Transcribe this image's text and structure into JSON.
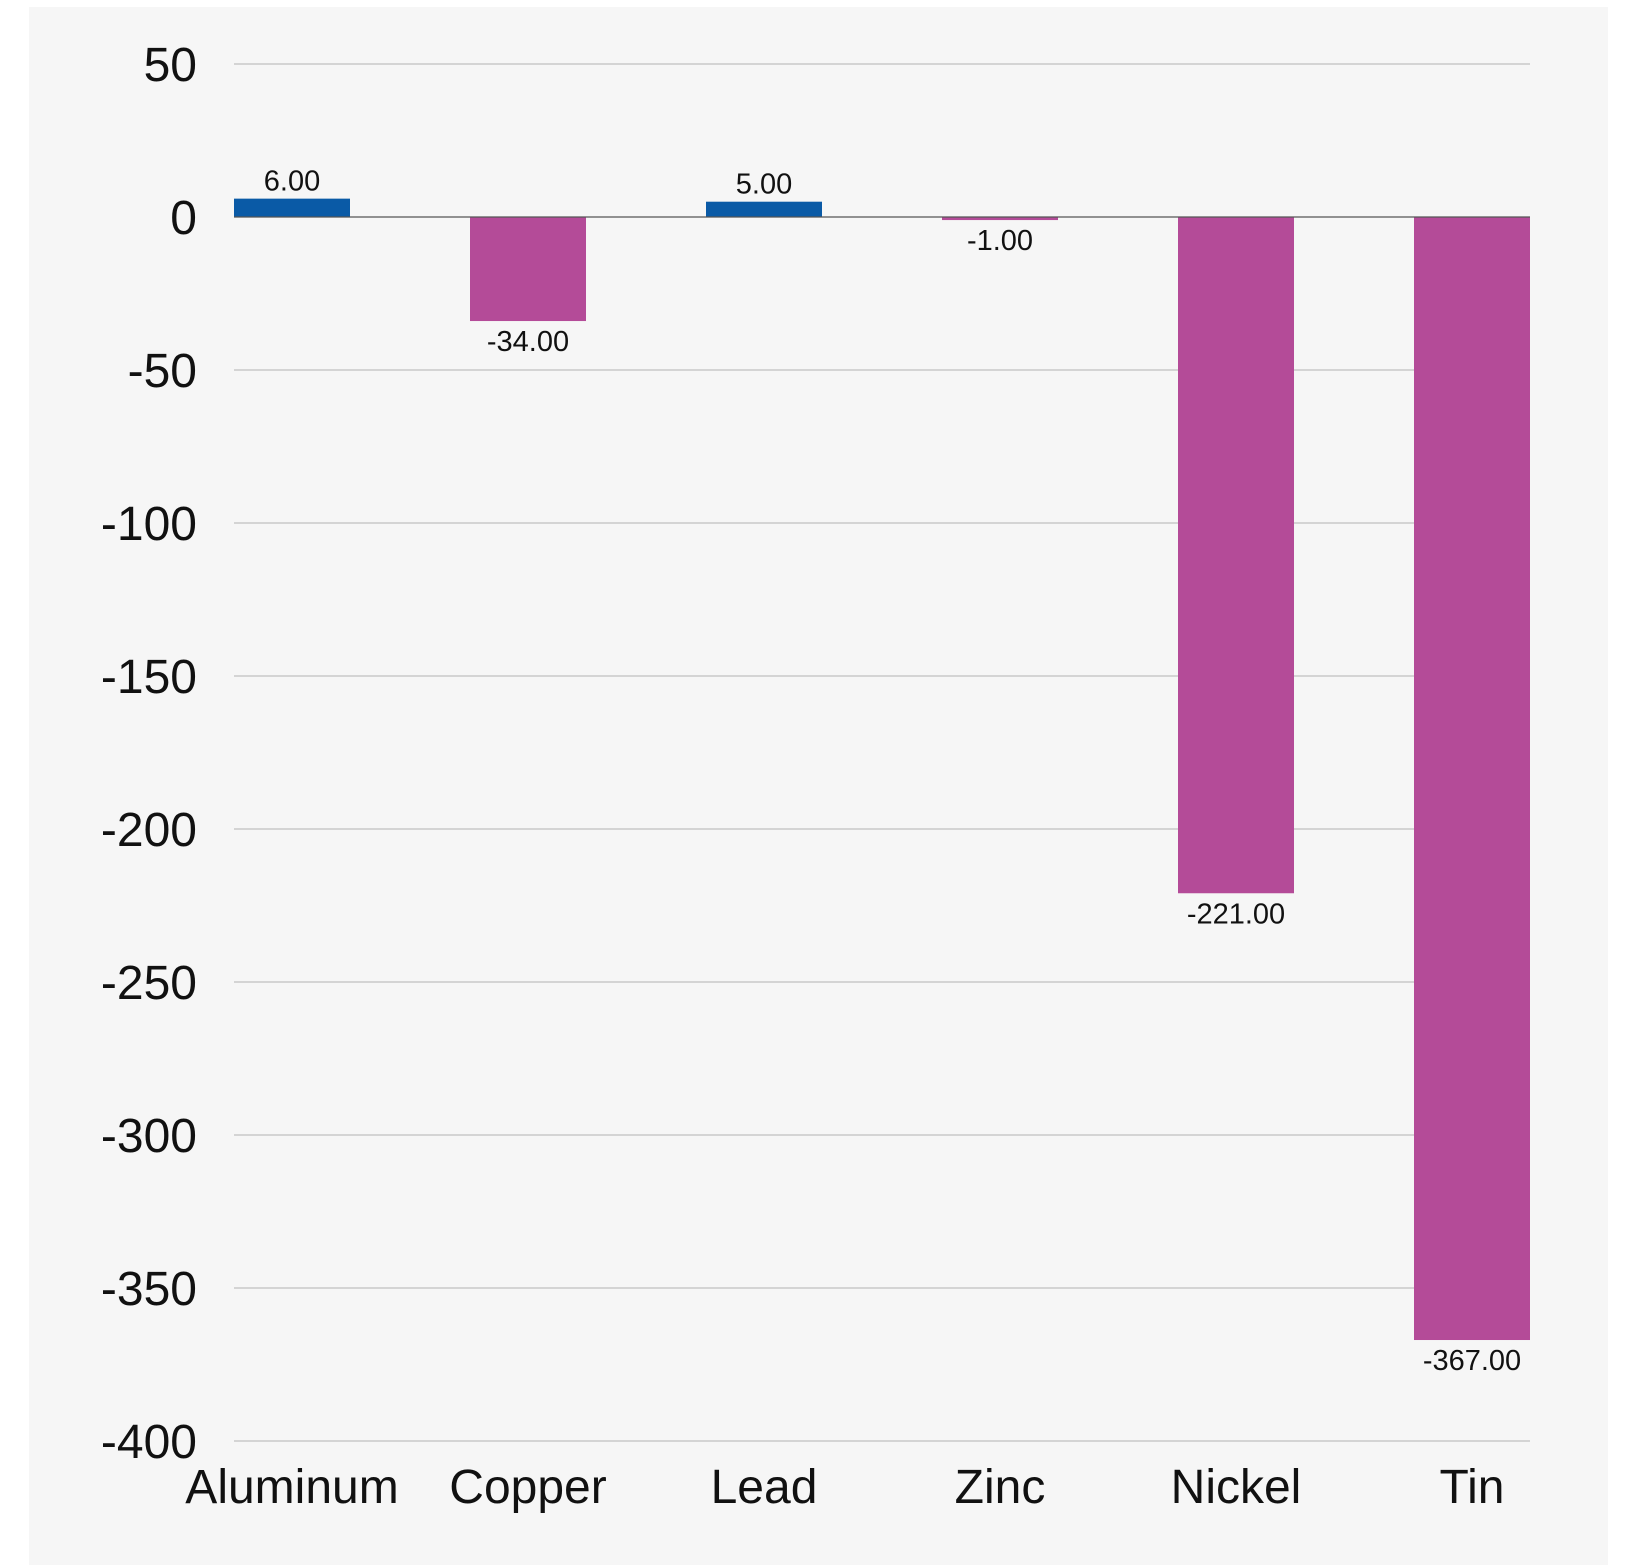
{
  "chart_data": {
    "type": "bar",
    "categories": [
      "Aluminum",
      "Copper",
      "Lead",
      "Zinc",
      "Nickel",
      "Tin"
    ],
    "values": [
      6,
      -34,
      5,
      -1,
      -221,
      -367
    ],
    "value_labels": [
      "6.00",
      "-34.00",
      "5.00",
      "-1.00",
      "-221.00",
      "-367.00"
    ],
    "ylim": [
      -400,
      50
    ],
    "yticks": [
      50,
      0,
      -50,
      -100,
      -150,
      -200,
      -250,
      -300,
      -350,
      -400
    ],
    "ytick_labels": [
      "50",
      "0",
      "-50",
      "-100",
      "-150",
      "-200",
      "-250",
      "-300",
      "-350",
      "-400"
    ],
    "grid": true,
    "legend": "none",
    "colors": {
      "positive": "#0a5aa6",
      "negative": "#b44b98",
      "background": "#f6f6f6"
    }
  }
}
